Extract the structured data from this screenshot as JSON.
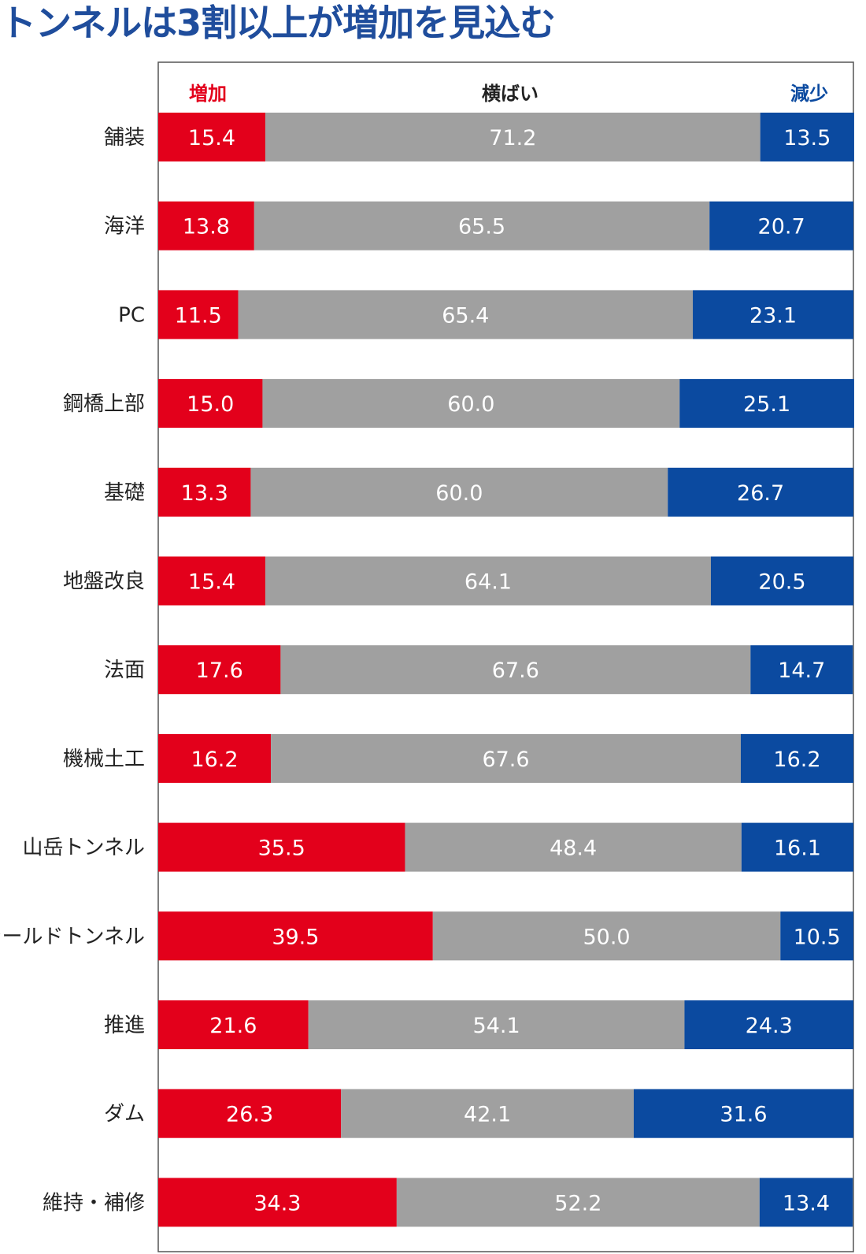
{
  "title": "トンネルは3割以上が増加を見込む",
  "colors": {
    "increase": "#e3001b",
    "flat": "#a0a0a0",
    "decrease": "#0b4aa0",
    "frame": "#555555",
    "title": "#1f4d9c"
  },
  "chart_data": {
    "type": "bar",
    "orientation": "horizontal",
    "stacked": true,
    "normalized_to": 100,
    "categories": [
      "舗装",
      "海洋",
      "PC",
      "鋼橋上部",
      "基礎",
      "地盤改良",
      "法面",
      "機械土工",
      "山岳トンネル",
      "シールドトンネル",
      "推進",
      "ダム",
      "維持・補修"
    ],
    "series": [
      {
        "name": "増加",
        "color": "#e3001b",
        "values": [
          15.4,
          13.8,
          11.5,
          15.0,
          13.3,
          15.4,
          17.6,
          16.2,
          35.5,
          39.5,
          21.6,
          26.3,
          34.3
        ]
      },
      {
        "name": "横ばい",
        "color": "#a0a0a0",
        "values": [
          71.2,
          65.5,
          65.4,
          60.0,
          60.0,
          64.1,
          67.6,
          67.6,
          48.4,
          50.0,
          54.1,
          42.1,
          52.2
        ]
      },
      {
        "name": "減少",
        "color": "#0b4aa0",
        "values": [
          13.5,
          20.7,
          23.1,
          25.1,
          26.7,
          20.5,
          14.7,
          16.2,
          16.1,
          10.5,
          24.3,
          31.6,
          13.4
        ]
      }
    ],
    "legend": "top",
    "grid": false
  }
}
